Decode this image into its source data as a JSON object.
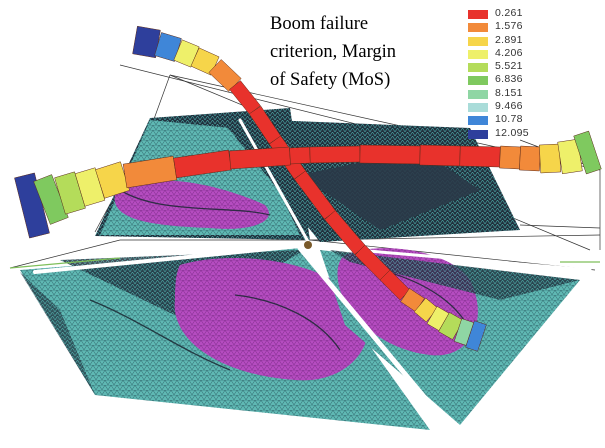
{
  "title": {
    "lines": [
      "Boom failure",
      "criterion, Margin",
      "of Safety (MoS)"
    ]
  },
  "legend": {
    "entries": [
      {
        "value": "0.261",
        "color": "#e8322c"
      },
      {
        "value": "1.576",
        "color": "#f28a3a"
      },
      {
        "value": "2.891",
        "color": "#f6d54a"
      },
      {
        "value": "4.206",
        "color": "#eef06a"
      },
      {
        "value": "5.521",
        "color": "#b4dc5a"
      },
      {
        "value": "6.836",
        "color": "#7fc95f"
      },
      {
        "value": "8.151",
        "color": "#8fd6a4"
      },
      {
        "value": "9.466",
        "color": "#a9dcd9"
      },
      {
        "value": "10.78",
        "color": "#3f86d8"
      },
      {
        "value": "12.095",
        "color": "#2e3f9c"
      }
    ]
  },
  "colors": {
    "membrane_teal": "#62b8b2",
    "membrane_purple": "#b34bbe",
    "mesh_dark": "#1c2a38",
    "boom_max": "#e8322c"
  }
}
